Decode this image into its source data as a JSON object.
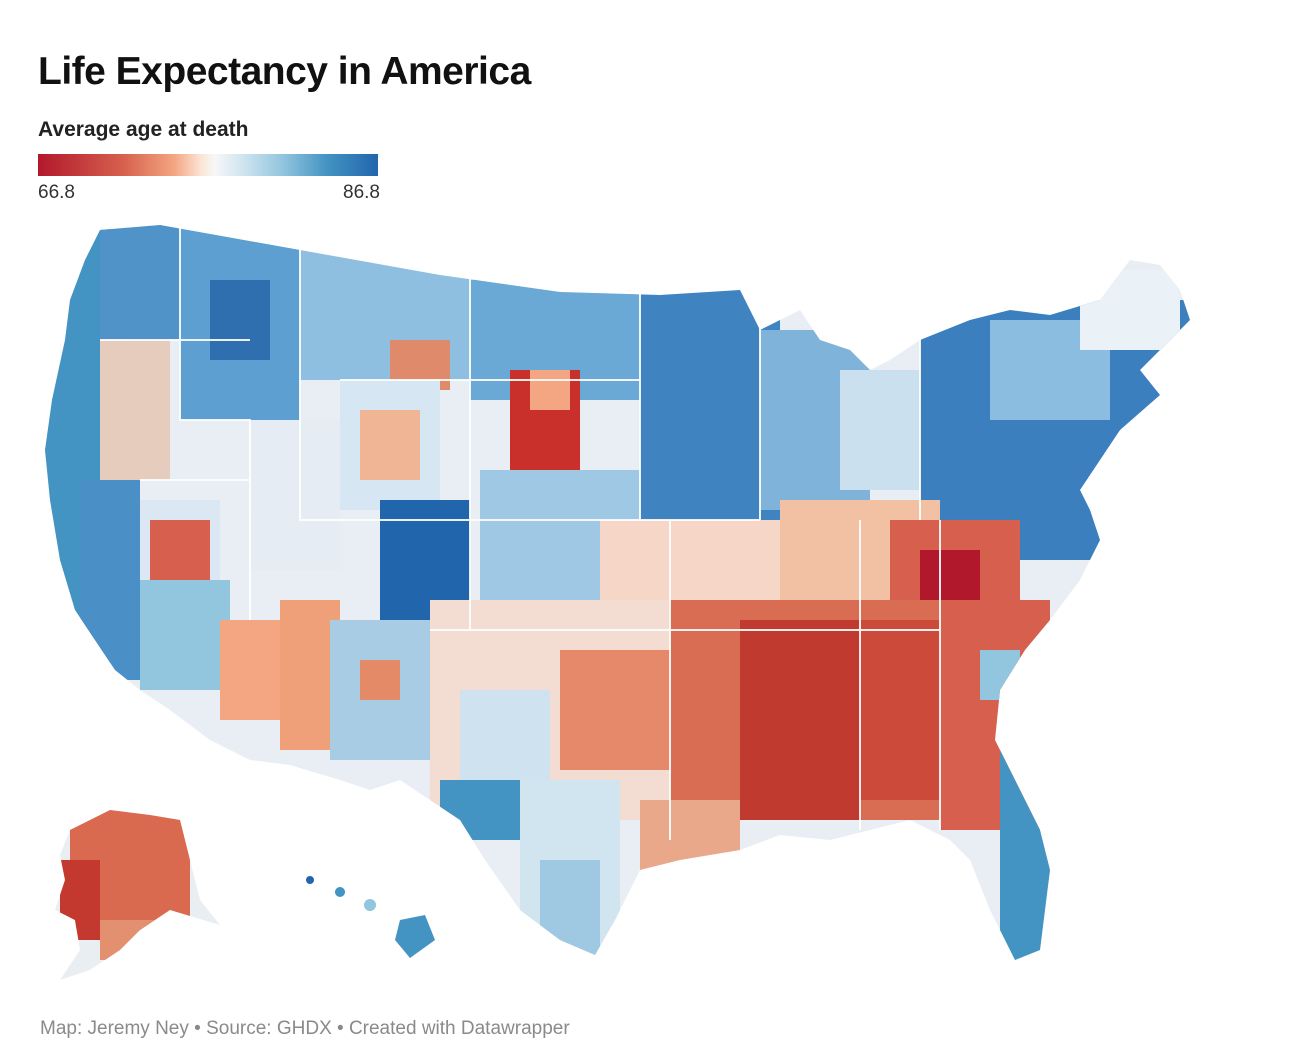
{
  "title": "Life Expectancy in America",
  "legend": {
    "title": "Average age at death",
    "min_label": "66.8",
    "max_label": "86.8",
    "min_value": 66.8,
    "max_value": 86.8,
    "colors": [
      "#b2182b",
      "#d6604d",
      "#f4a582",
      "#f7f7f7",
      "#92c5de",
      "#4393c3",
      "#2166ac"
    ]
  },
  "footer": "Map: Jeremy Ney • Source: GHDX • Created with Datawrapper"
}
